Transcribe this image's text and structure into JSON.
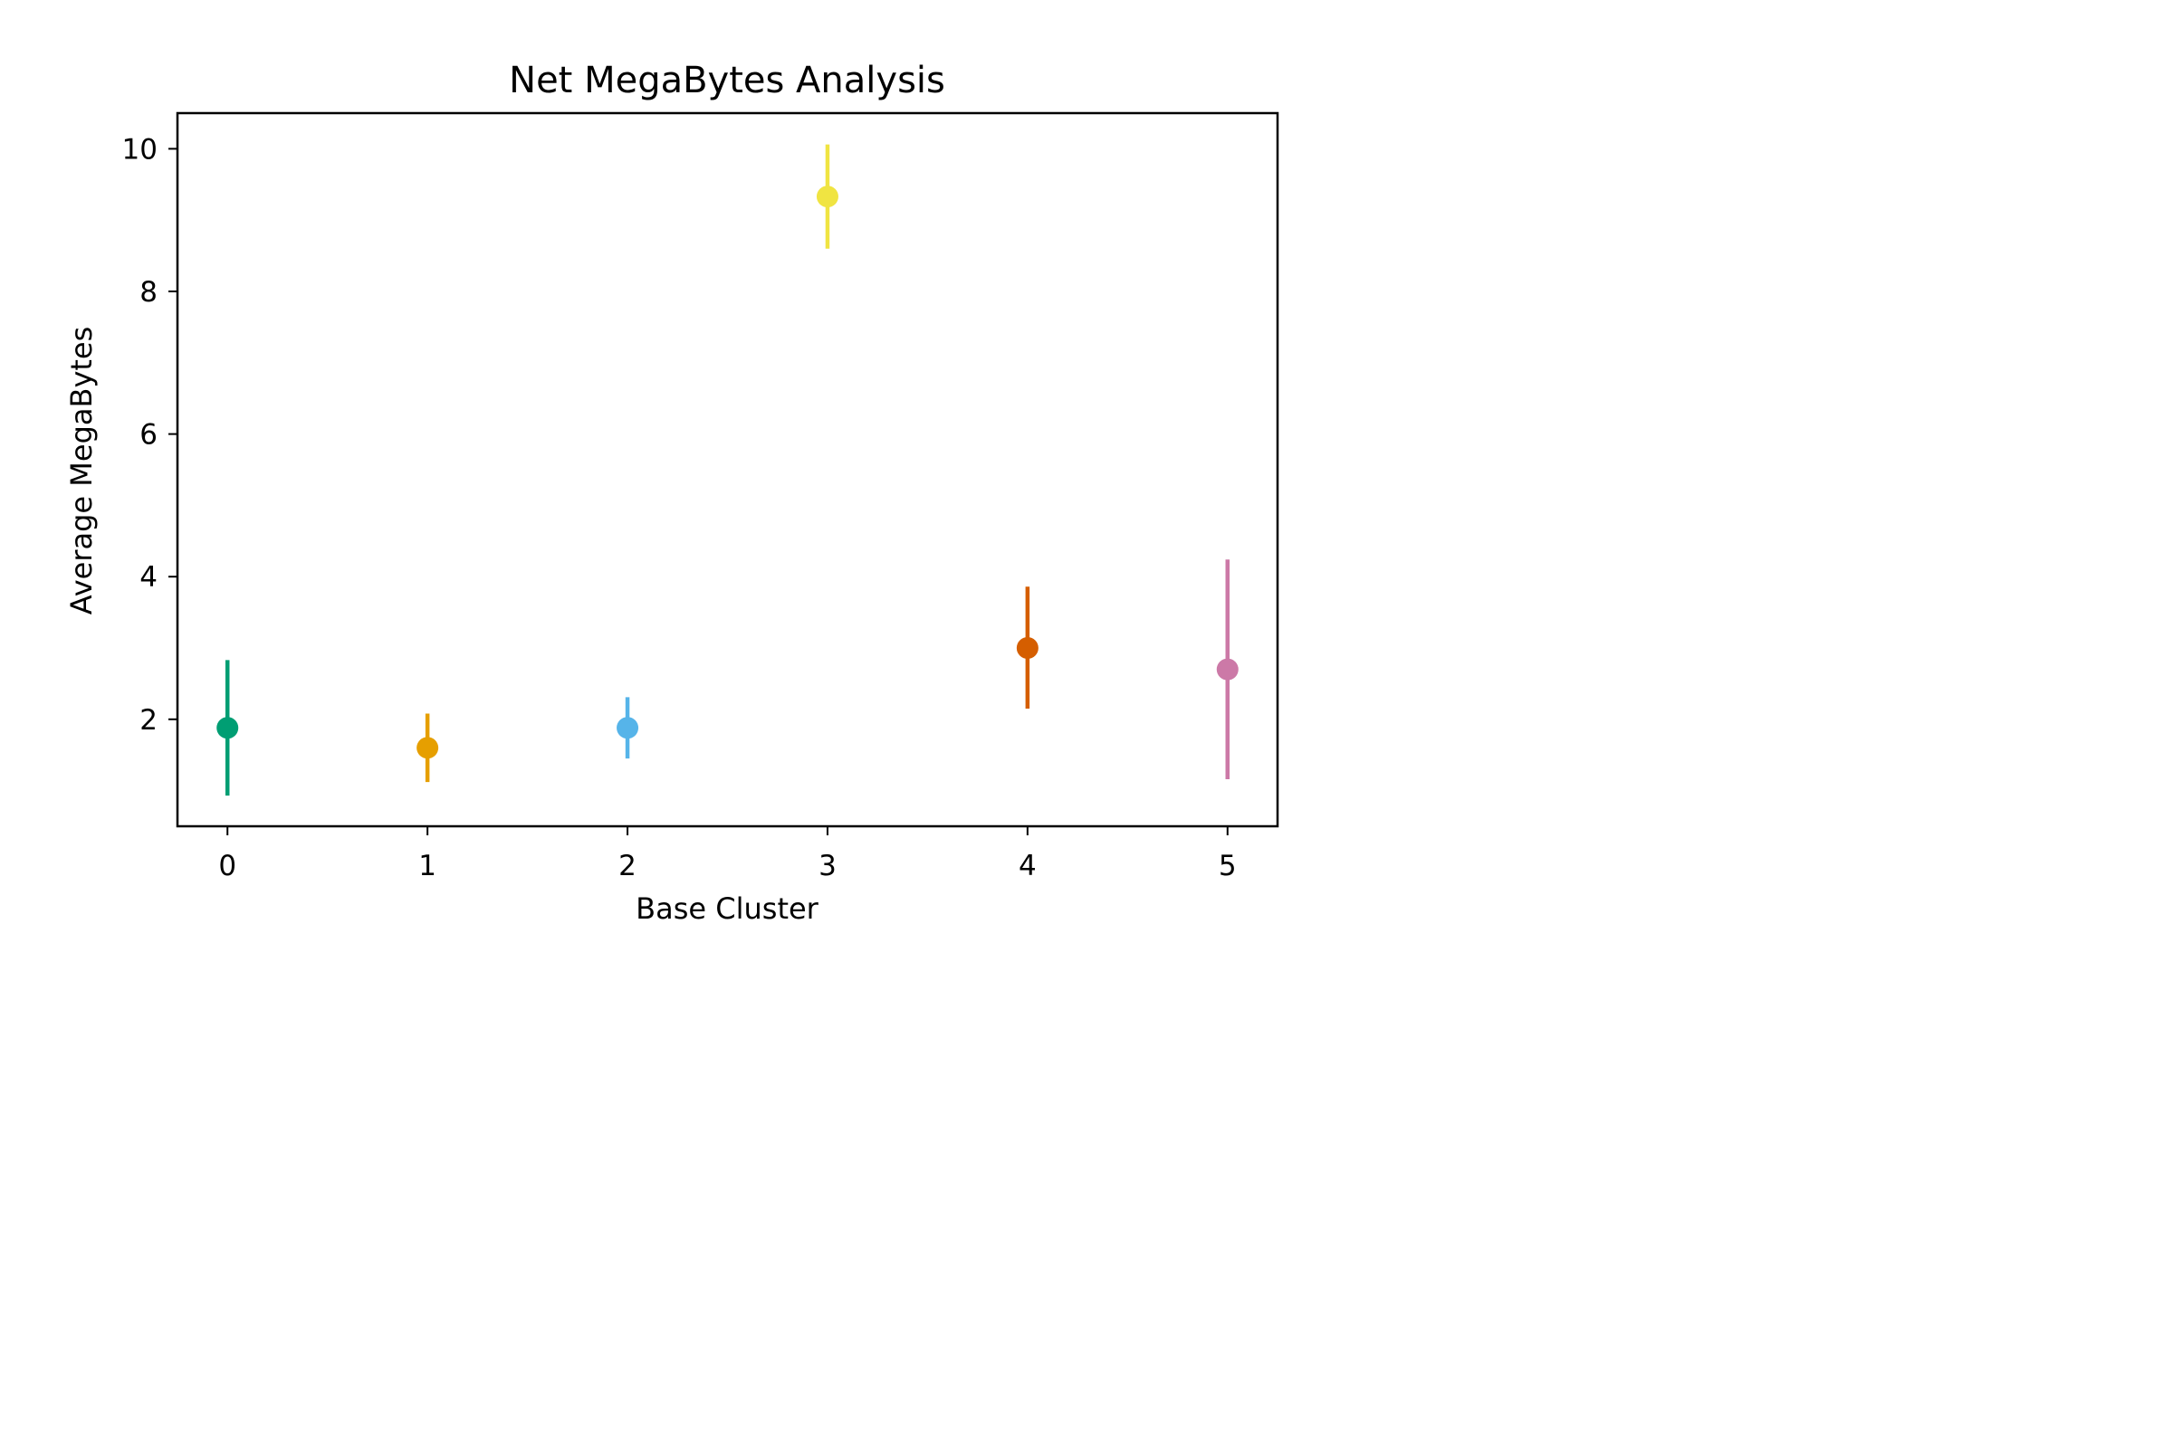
{
  "chart_data": {
    "type": "scatter",
    "title": "Net MegaBytes Analysis",
    "xlabel": "Base Cluster",
    "ylabel": "Average MegaBytes",
    "xlim": [
      -0.25,
      5.25
    ],
    "ylim": [
      0.5,
      10.5
    ],
    "x_ticks": [
      "0",
      "1",
      "2",
      "3",
      "4",
      "5"
    ],
    "y_ticks": [
      "2",
      "4",
      "6",
      "8",
      "10"
    ],
    "grid": false,
    "points": [
      {
        "x": 0,
        "y": 1.88,
        "low": 0.93,
        "high": 2.83,
        "color": "#009e73"
      },
      {
        "x": 1,
        "y": 1.6,
        "low": 1.12,
        "high": 2.08,
        "color": "#e69f00"
      },
      {
        "x": 2,
        "y": 1.88,
        "low": 1.45,
        "high": 2.31,
        "color": "#56b4e9"
      },
      {
        "x": 3,
        "y": 9.33,
        "low": 8.6,
        "high": 10.06,
        "color": "#f0e442"
      },
      {
        "x": 4,
        "y": 3.0,
        "low": 2.15,
        "high": 3.86,
        "color": "#d55e00"
      },
      {
        "x": 5,
        "y": 2.7,
        "low": 1.16,
        "high": 4.24,
        "color": "#cc79a7"
      }
    ]
  }
}
